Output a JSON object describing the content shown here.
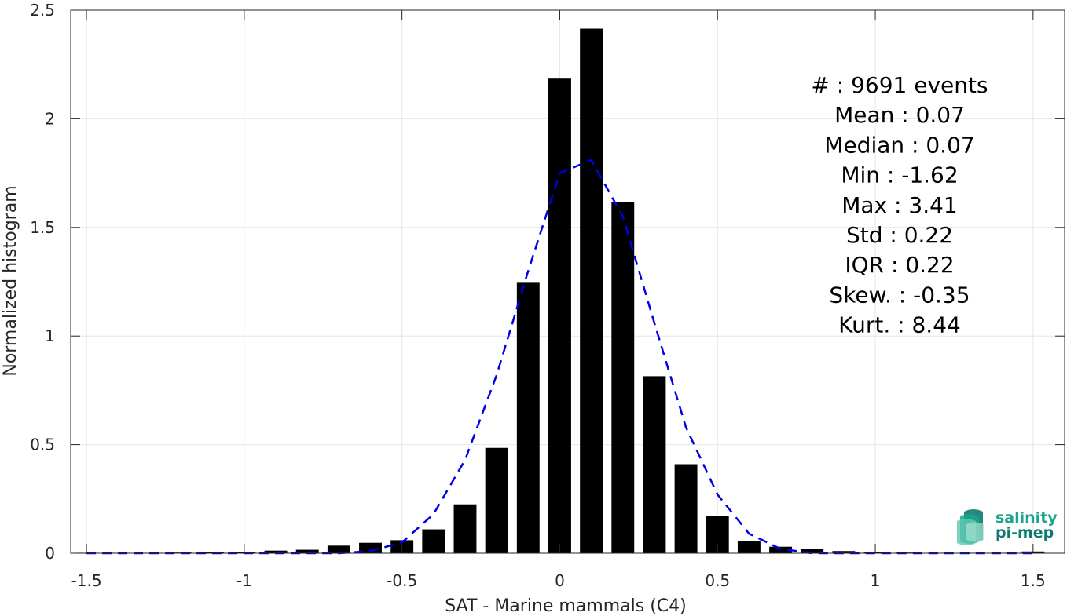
{
  "chart_data": {
    "type": "bar",
    "xlabel": "SAT - Marine mammals (C4)",
    "ylabel": "Normalized histogram",
    "xlim": [
      -1.55,
      1.6
    ],
    "ylim": [
      0,
      2.5
    ],
    "grid": true,
    "x_ticks": [
      -1.5,
      -1,
      -0.5,
      0,
      0.5,
      1,
      1.5
    ],
    "x_tick_labels": [
      "-1.5",
      "-1",
      "-0.5",
      "0",
      "0.5",
      "1",
      "1.5"
    ],
    "y_ticks": [
      0,
      0.5,
      1,
      1.5,
      2,
      2.5
    ],
    "y_tick_labels": [
      "0",
      "0.5",
      "1",
      "1.5",
      "2",
      "2.5"
    ],
    "bar_color": "#000000",
    "bin_width": 0.1,
    "bars": {
      "x": [
        -1.5,
        -1.4,
        -1.3,
        -1.2,
        -1.1,
        -1.0,
        -0.9,
        -0.8,
        -0.7,
        -0.6,
        -0.5,
        -0.4,
        -0.3,
        -0.2,
        -0.1,
        0.0,
        0.1,
        0.2,
        0.3,
        0.4,
        0.5,
        0.6,
        0.7,
        0.8,
        0.9,
        1.0,
        1.1,
        1.2,
        1.3,
        1.4,
        1.5
      ],
      "values": [
        0.002,
        0.002,
        0.002,
        0.003,
        0.005,
        0.006,
        0.012,
        0.016,
        0.035,
        0.048,
        0.06,
        0.11,
        0.225,
        0.485,
        1.245,
        2.185,
        2.415,
        1.615,
        0.815,
        0.41,
        0.17,
        0.055,
        0.03,
        0.018,
        0.01,
        0.005,
        0.003,
        0.002,
        0.002,
        0.002,
        0.008
      ]
    },
    "fit_line": {
      "style": "dashed",
      "color": "#0000e6",
      "x": [
        -1.5,
        -1.4,
        -1.3,
        -1.2,
        -1.1,
        -1.0,
        -0.9,
        -0.8,
        -0.7,
        -0.6,
        -0.5,
        -0.4,
        -0.3,
        -0.2,
        -0.1,
        0.0,
        0.1,
        0.2,
        0.3,
        0.4,
        0.5,
        0.6,
        0.7,
        0.8,
        0.9,
        1.0,
        1.1,
        1.2,
        1.3,
        1.4,
        1.5
      ],
      "values": [
        0.0,
        0.0,
        0.0,
        0.0,
        0.0,
        0.0,
        0.0,
        0.0,
        0.0,
        0.01,
        0.05,
        0.18,
        0.43,
        0.82,
        1.3,
        1.75,
        1.81,
        1.55,
        1.06,
        0.58,
        0.27,
        0.09,
        0.02,
        0.0,
        0.0,
        0.0,
        0.0,
        0.0,
        0.0,
        0.0,
        0.0
      ]
    },
    "stats_lines": [
      "#  : 9691 events",
      "Mean : 0.07",
      "Median : 0.07",
      "Min : -1.62",
      "Max : 3.41",
      "Std : 0.22",
      "IQR : 0.22",
      "Skew. : -0.35",
      "Kurt. : 8.44"
    ]
  },
  "logo": {
    "line1": "salinity",
    "line2": "pi-mep",
    "color": "#1aa58c",
    "color_dark": "#0e7a70"
  }
}
